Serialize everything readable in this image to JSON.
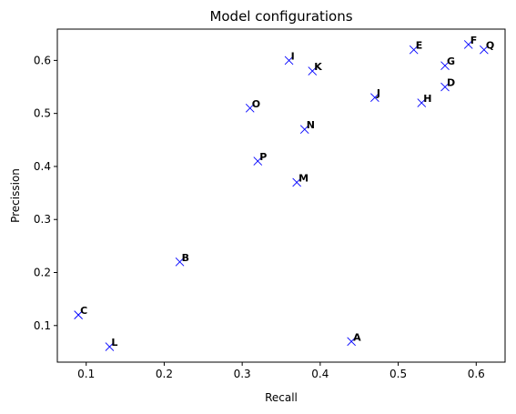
{
  "chart_data": {
    "type": "scatter",
    "title": "Model configurations",
    "xlabel": "Recall",
    "ylabel": "Precission",
    "xlim": [
      0.063,
      0.637
    ],
    "ylim": [
      0.031,
      0.659
    ],
    "xticks": [
      0.1,
      0.2,
      0.3,
      0.4,
      0.5,
      0.6
    ],
    "yticks": [
      0.1,
      0.2,
      0.3,
      0.4,
      0.5,
      0.6
    ],
    "xtick_labels": [
      "0.1",
      "0.2",
      "0.3",
      "0.4",
      "0.5",
      "0.6"
    ],
    "ytick_labels": [
      "0.1",
      "0.2",
      "0.3",
      "0.4",
      "0.5",
      "0.6"
    ],
    "grid": false,
    "marker": "x",
    "marker_color": "#0000ff",
    "points": [
      {
        "label": "A",
        "x": 0.44,
        "y": 0.07
      },
      {
        "label": "B",
        "x": 0.22,
        "y": 0.22
      },
      {
        "label": "C",
        "x": 0.09,
        "y": 0.12
      },
      {
        "label": "D",
        "x": 0.56,
        "y": 0.55
      },
      {
        "label": "E",
        "x": 0.52,
        "y": 0.62
      },
      {
        "label": "F",
        "x": 0.59,
        "y": 0.63
      },
      {
        "label": "G",
        "x": 0.56,
        "y": 0.59
      },
      {
        "label": "H",
        "x": 0.53,
        "y": 0.52
      },
      {
        "label": "I",
        "x": 0.36,
        "y": 0.6
      },
      {
        "label": "J",
        "x": 0.47,
        "y": 0.53
      },
      {
        "label": "K",
        "x": 0.39,
        "y": 0.58
      },
      {
        "label": "L",
        "x": 0.13,
        "y": 0.06
      },
      {
        "label": "M",
        "x": 0.37,
        "y": 0.37
      },
      {
        "label": "N",
        "x": 0.38,
        "y": 0.47
      },
      {
        "label": "O",
        "x": 0.31,
        "y": 0.51
      },
      {
        "label": "P",
        "x": 0.32,
        "y": 0.41
      },
      {
        "label": "Q",
        "x": 0.61,
        "y": 0.62
      }
    ]
  }
}
